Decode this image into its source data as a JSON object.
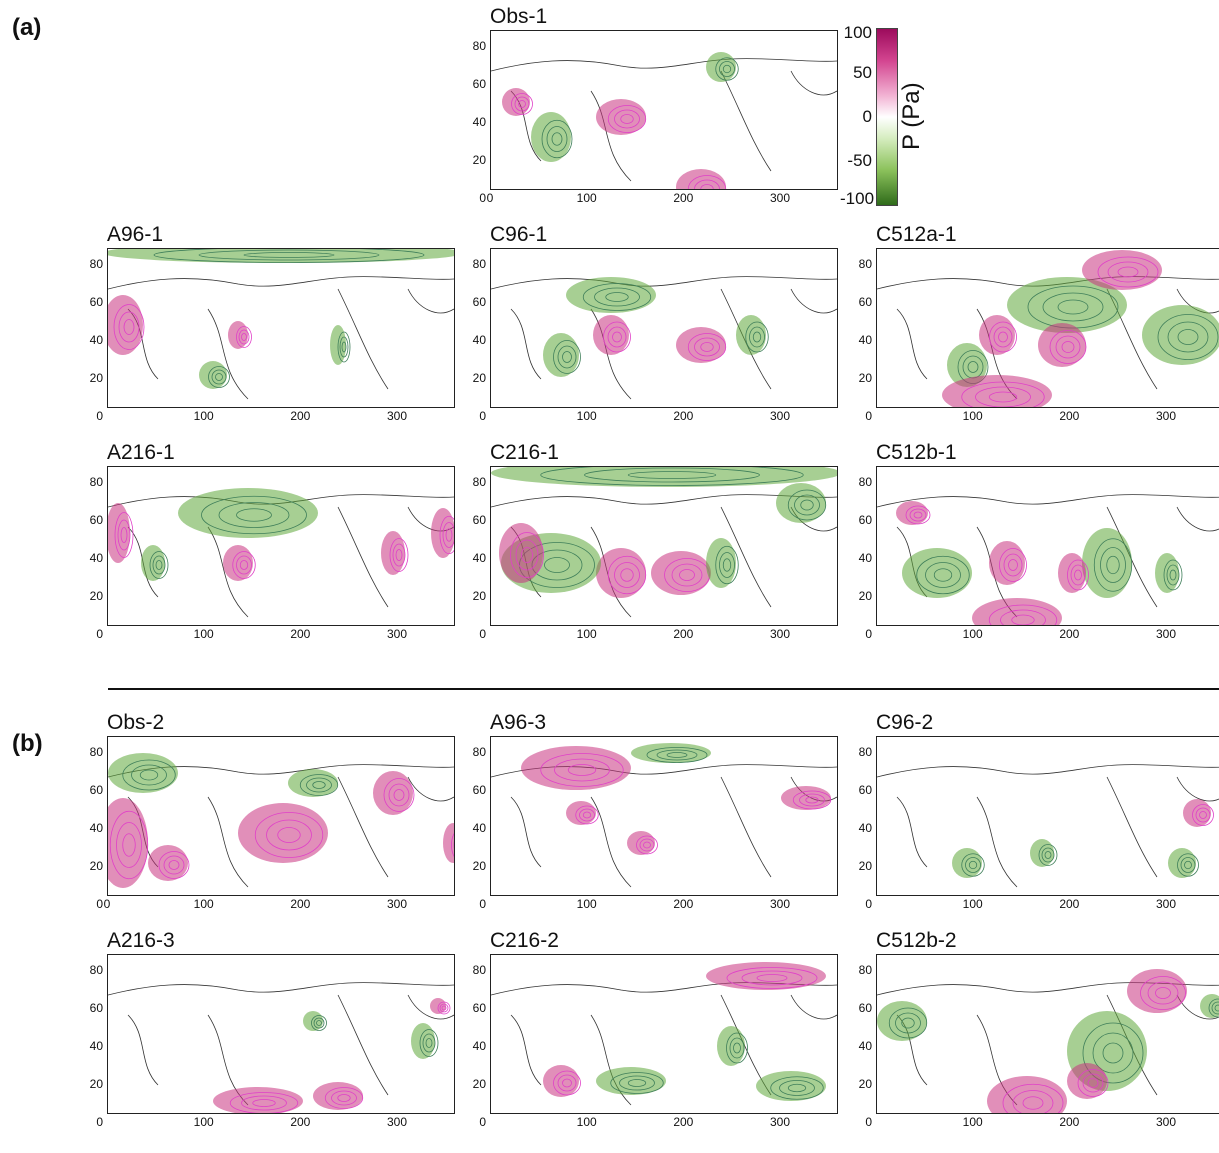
{
  "section_a": "(a)",
  "section_b": "(b)",
  "colorbar": {
    "label": "P (Pa)",
    "ticks": [
      "100",
      "50",
      "0",
      "-50",
      "-100"
    ],
    "high_color": "#9c0b5c",
    "low_color": "#2f6b1a"
  },
  "y_ticks": [
    "80",
    "60",
    "40",
    "20",
    "0"
  ],
  "x_ticks_full": [
    "0",
    "100",
    "200",
    "300"
  ],
  "x_ticks": [
    "100",
    "200",
    "300"
  ],
  "panels": {
    "obs1": "Obs-1",
    "a96_1": "A96-1",
    "c96_1": "C96-1",
    "c512a_1": "C512a-1",
    "a216_1": "A216-1",
    "c216_1": "C216-1",
    "c512b_1": "C512b-1",
    "obs2": "Obs-2",
    "a96_3": "A96-3",
    "c96_2": "C96-2",
    "a216_3": "A216-3",
    "c216_2": "C216-2",
    "c512b_2": "C512b-2"
  }
}
